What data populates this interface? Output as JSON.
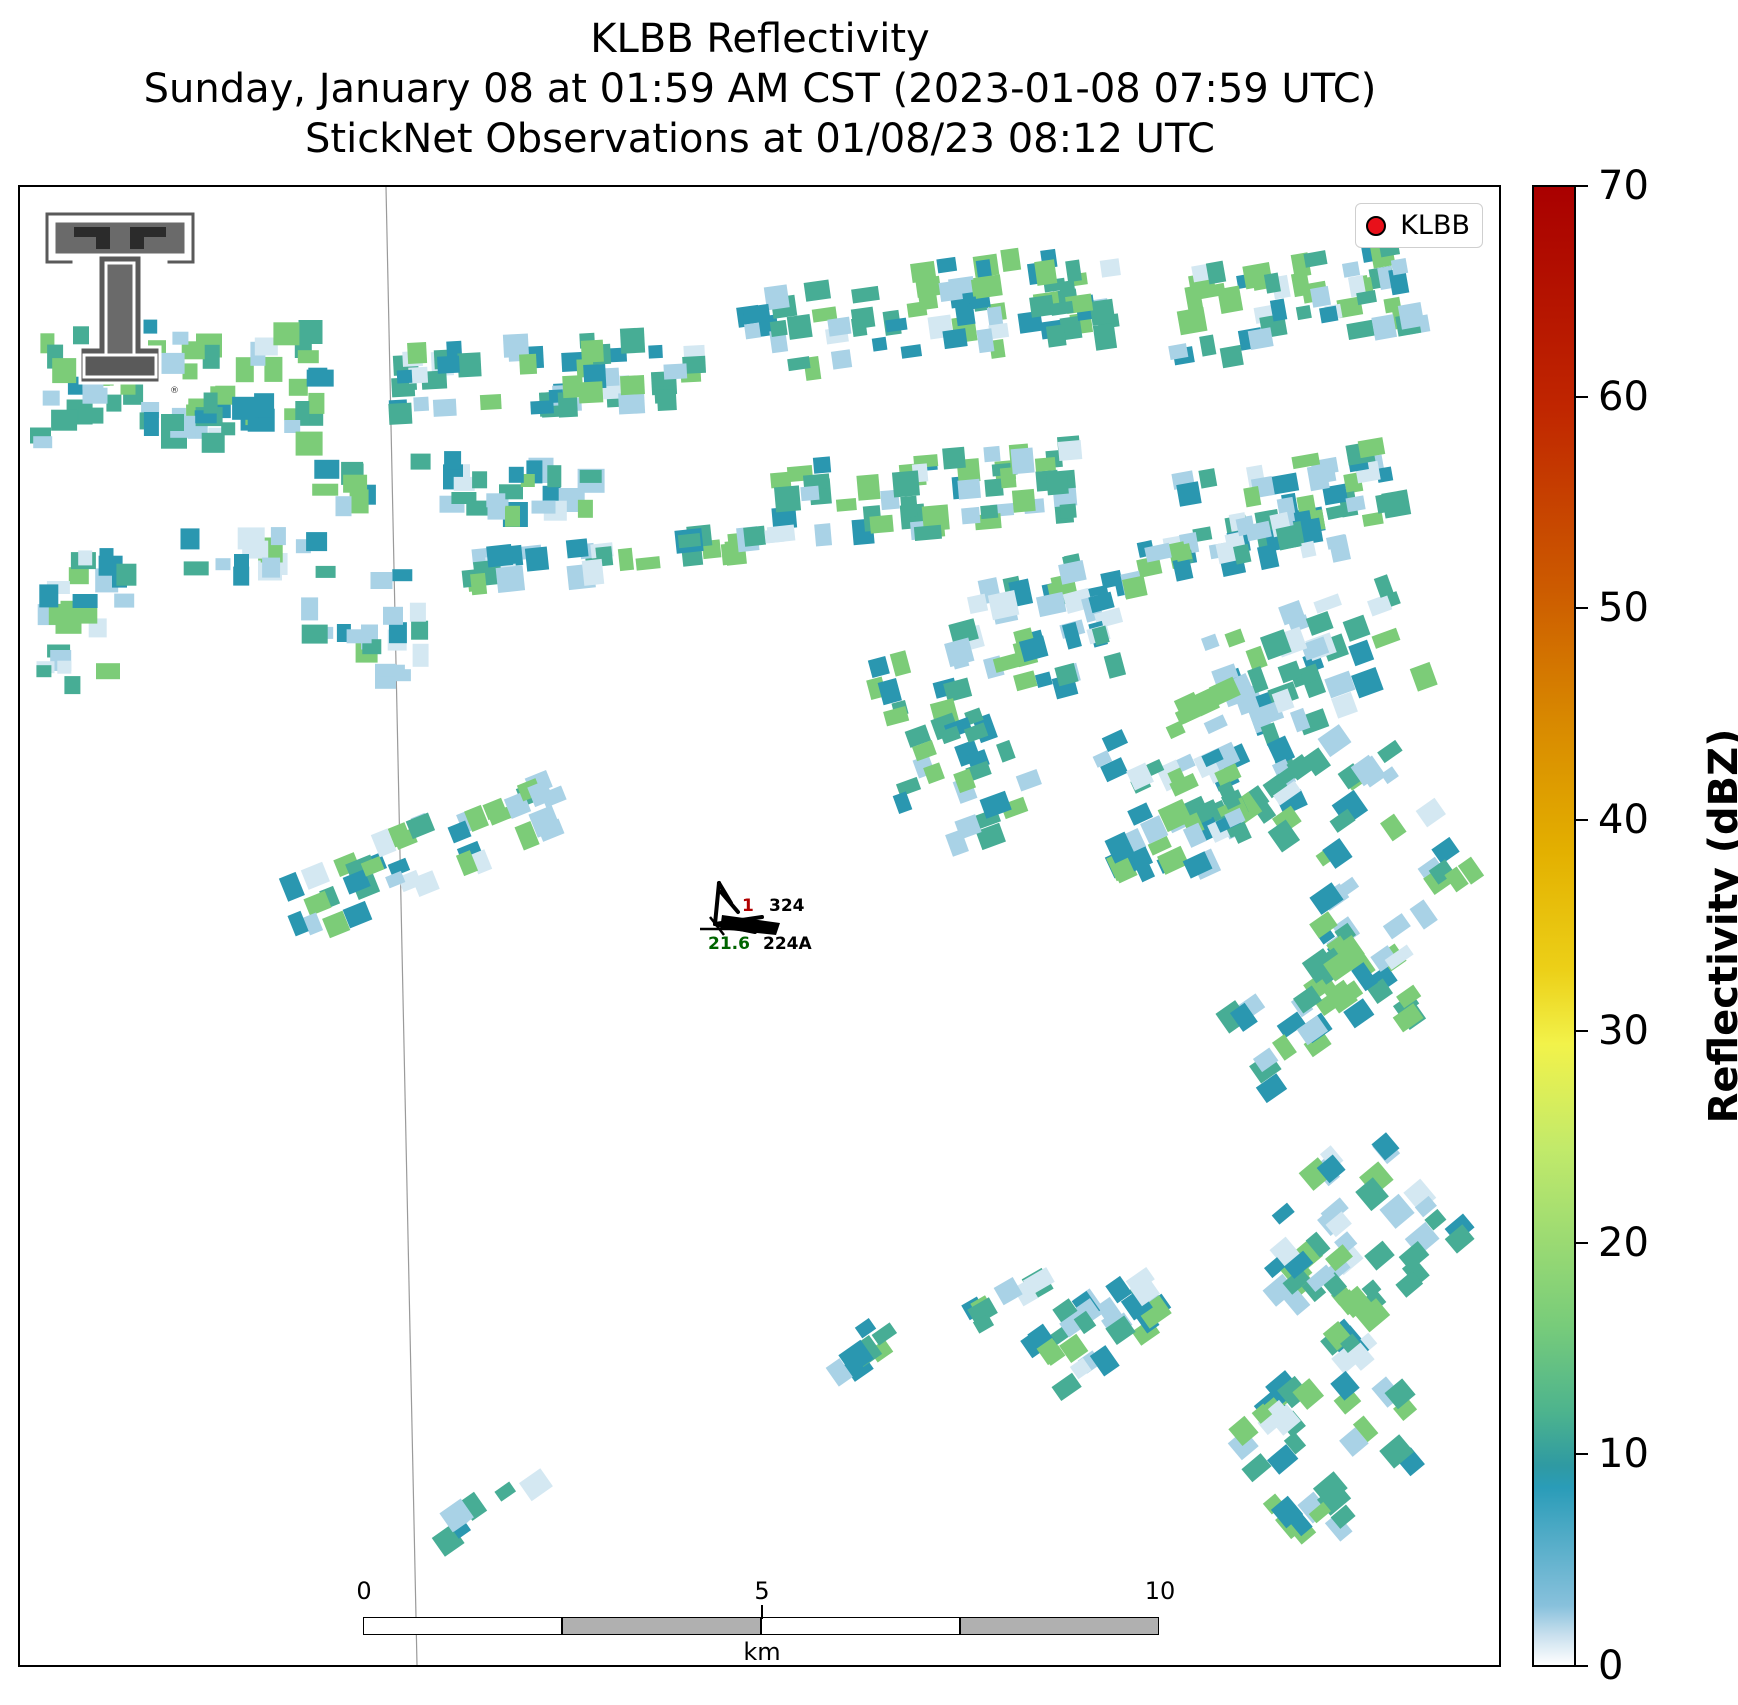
{
  "title": {
    "line1": "KLBB Reflectivity",
    "line2": "Sunday, January 08 at 01:59 AM CST (2023-01-08 07:59 UTC)",
    "line3": "StickNet Observations at 01/08/23 08:12 UTC"
  },
  "legend": {
    "label": "KLBB",
    "marker_color": "#e8101a"
  },
  "logo": {
    "name": "texas-tech-double-t-logo",
    "mark": "®"
  },
  "scale_bar": {
    "labels": [
      "0",
      "5",
      "10"
    ],
    "unit": "km"
  },
  "colorbar": {
    "title": "Reflectivity (dBZ)",
    "ticks": [
      "0",
      "10",
      "20",
      "30",
      "40",
      "50",
      "60",
      "70"
    ],
    "min": 0,
    "max": 70
  },
  "stations": [
    {
      "id": "324",
      "temp": "1",
      "dew": ""
    },
    {
      "id": "224A",
      "temp": "",
      "dew": "21.6"
    }
  ],
  "colors": {
    "light": "#a9d2e6",
    "teal": "#2a97b0",
    "sea": "#47ad95",
    "green": "#7ccc78",
    "pale": "#d4e8f2"
  }
}
